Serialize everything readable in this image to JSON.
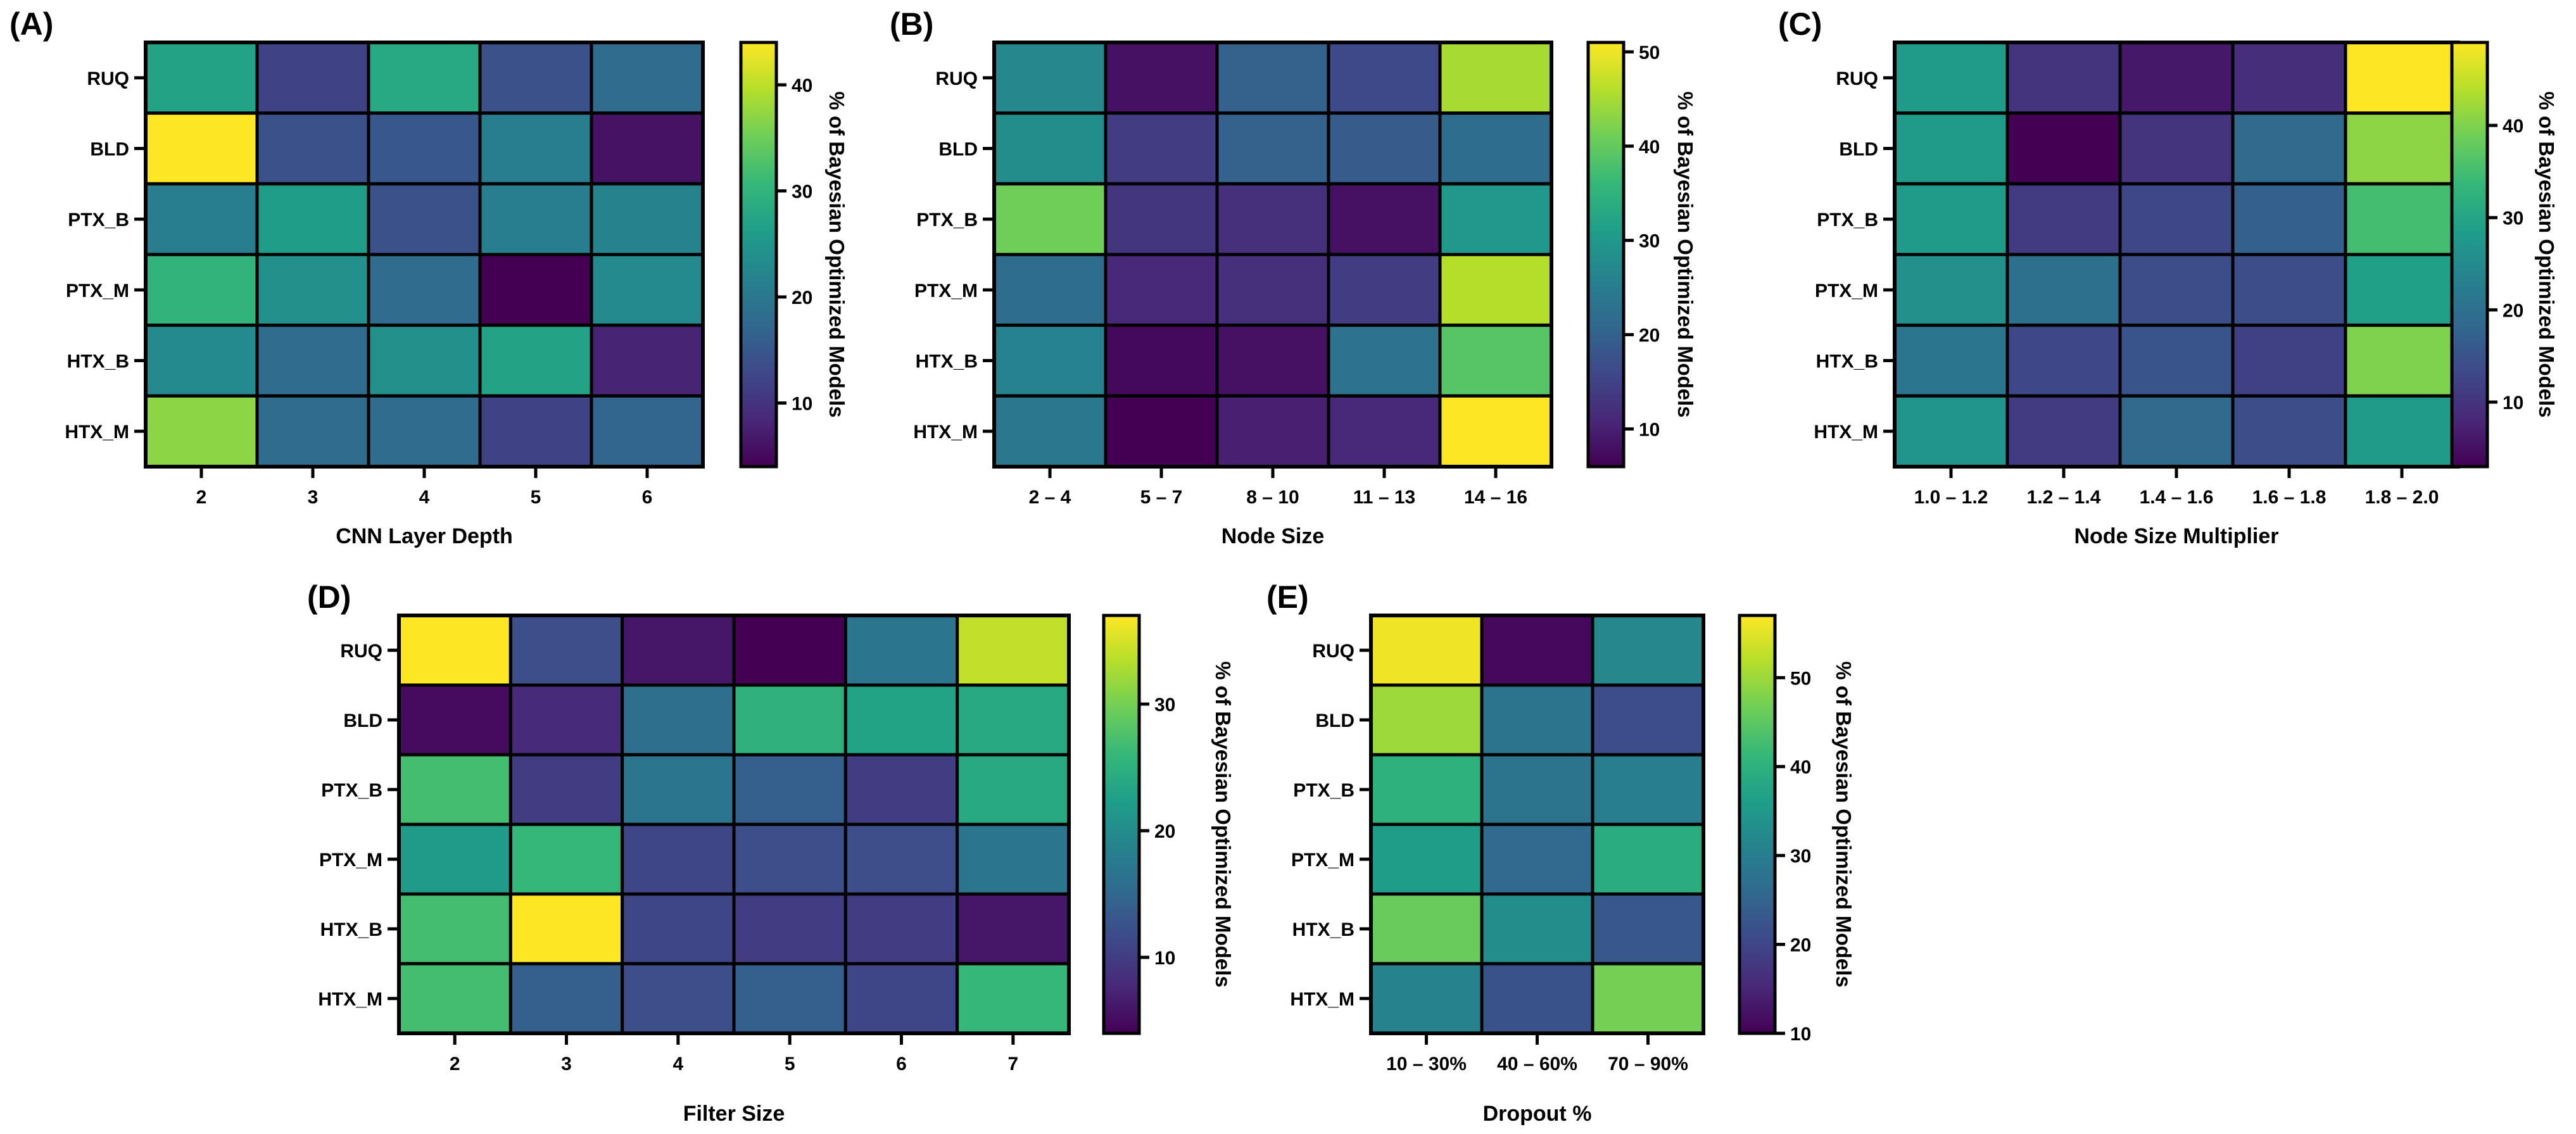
{
  "colormap": [
    "#440154",
    "#482878",
    "#3e4989",
    "#31688e",
    "#26828e",
    "#1f9e89",
    "#35b779",
    "#6ece58",
    "#b5de2b",
    "#fde725"
  ],
  "chart_data": [
    {
      "type": "heatmap",
      "panel": "(A)",
      "xlabel": "CNN Layer Depth",
      "colorbar_label": "% of Bayesian Optimized Models",
      "rows": [
        "RUQ",
        "BLD",
        "PTX_B",
        "PTX_M",
        "HTX_B",
        "HTX_M"
      ],
      "categories": [
        "2",
        "3",
        "4",
        "5",
        "6"
      ],
      "cmin": 4,
      "cmax": 44,
      "cticks": [
        "10",
        "20",
        "30",
        "40"
      ],
      "values": [
        [
          27,
          12,
          28,
          14,
          18
        ],
        [
          44,
          14,
          15,
          21,
          6
        ],
        [
          21,
          26,
          14,
          21,
          22
        ],
        [
          30,
          24,
          18,
          4,
          23
        ],
        [
          23,
          18,
          24,
          27,
          8
        ],
        [
          37,
          18,
          18,
          12,
          17
        ]
      ]
    },
    {
      "type": "heatmap",
      "panel": "(B)",
      "xlabel": "Node Size",
      "colorbar_label": "% of Bayesian Optimized Models",
      "rows": [
        "RUQ",
        "BLD",
        "PTX_B",
        "PTX_M",
        "HTX_B",
        "HTX_M"
      ],
      "categories": [
        "2 – 4",
        "5 – 7",
        "8 – 10",
        "11 – 13",
        "14 – 16"
      ],
      "cmin": 6,
      "cmax": 51,
      "cticks": [
        "10",
        "20",
        "30",
        "40",
        "50"
      ],
      "values": [
        [
          27,
          8,
          20,
          16,
          45
        ],
        [
          28,
          14,
          20,
          19,
          22
        ],
        [
          41,
          13,
          12,
          8,
          30
        ],
        [
          22,
          11,
          12,
          14,
          46
        ],
        [
          26,
          7,
          8,
          23,
          39
        ],
        [
          24,
          6,
          10,
          11,
          51
        ]
      ]
    },
    {
      "type": "heatmap",
      "panel": "(C)",
      "xlabel": "Node Size Multiplier",
      "colorbar_label": "% of Bayesian Optimized Models",
      "rows": [
        "RUQ",
        "BLD",
        "PTX_B",
        "PTX_M",
        "HTX_B",
        "HTX_M"
      ],
      "categories": [
        "1.0 – 1.2",
        "1.2 – 1.4",
        "1.4 – 1.6",
        "1.6 – 1.8",
        "1.8 – 2.0"
      ],
      "cmin": 3,
      "cmax": 49,
      "cticks": [
        "10",
        "20",
        "30",
        "40"
      ],
      "values": [
        [
          28,
          10,
          6,
          9,
          49
        ],
        [
          28,
          3,
          10,
          19,
          41
        ],
        [
          28,
          11,
          13,
          17,
          35
        ],
        [
          26,
          20,
          14,
          14,
          29
        ],
        [
          21,
          13,
          15,
          12,
          40
        ],
        [
          27,
          11,
          19,
          14,
          28
        ]
      ]
    },
    {
      "type": "heatmap",
      "panel": "(D)",
      "xlabel": "Filter Size",
      "colorbar_label": "% of Bayesian Optimized Models",
      "rows": [
        "RUQ",
        "BLD",
        "PTX_B",
        "PTX_M",
        "HTX_B",
        "HTX_M"
      ],
      "categories": [
        "2",
        "3",
        "4",
        "5",
        "6",
        "7"
      ],
      "cmin": 4,
      "cmax": 37,
      "cticks": [
        "10",
        "20",
        "30"
      ],
      "values": [
        [
          37,
          12,
          6,
          4,
          17,
          34
        ],
        [
          5,
          8,
          16,
          25,
          23,
          24
        ],
        [
          27,
          10,
          17,
          14,
          10,
          24
        ],
        [
          22,
          26,
          11,
          12,
          12,
          17
        ],
        [
          27,
          37,
          11,
          10,
          10,
          6
        ],
        [
          27,
          14,
          12,
          14,
          11,
          26
        ]
      ]
    },
    {
      "type": "heatmap",
      "panel": "(E)",
      "xlabel": "Dropout %",
      "colorbar_label": "% of Bayesian Optimized Models",
      "rows": [
        "RUQ",
        "BLD",
        "PTX_B",
        "PTX_M",
        "HTX_B",
        "HTX_M"
      ],
      "categories": [
        "10 – 30%",
        "40 – 60%",
        "70 – 90%"
      ],
      "cmin": 10,
      "cmax": 57,
      "cticks": [
        "10",
        "20",
        "30",
        "40",
        "50"
      ],
      "values": [
        [
          56,
          11,
          32
        ],
        [
          50,
          28,
          21
        ],
        [
          40,
          28,
          30
        ],
        [
          36,
          26,
          39
        ],
        [
          46,
          33,
          23
        ],
        [
          31,
          22,
          47
        ]
      ]
    }
  ]
}
